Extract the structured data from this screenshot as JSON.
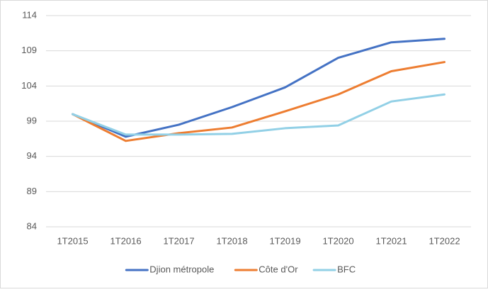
{
  "chart_data": {
    "type": "line",
    "categories": [
      "1T2015",
      "1T2016",
      "1T2017",
      "1T2018",
      "1T2019",
      "1T2020",
      "1T2021",
      "1T2022"
    ],
    "series": [
      {
        "name": "Djion métropole",
        "color": "#4472c4",
        "values": [
          100,
          96.8,
          98.5,
          101,
          103.8,
          108,
          110.2,
          110.7
        ]
      },
      {
        "name": "Côte d'Or",
        "color": "#ed7d31",
        "values": [
          100,
          96.2,
          97.3,
          98.1,
          100.4,
          102.8,
          106.1,
          107.4
        ]
      },
      {
        "name": "BFC",
        "color": "#92d0e6",
        "values": [
          100,
          97.1,
          97.1,
          97.2,
          98,
          98.4,
          101.8,
          102.8
        ]
      }
    ],
    "ylim": [
      84,
      114
    ],
    "yticks": [
      84,
      89,
      94,
      99,
      104,
      109,
      114
    ],
    "grid": true,
    "legend": "bottom"
  }
}
